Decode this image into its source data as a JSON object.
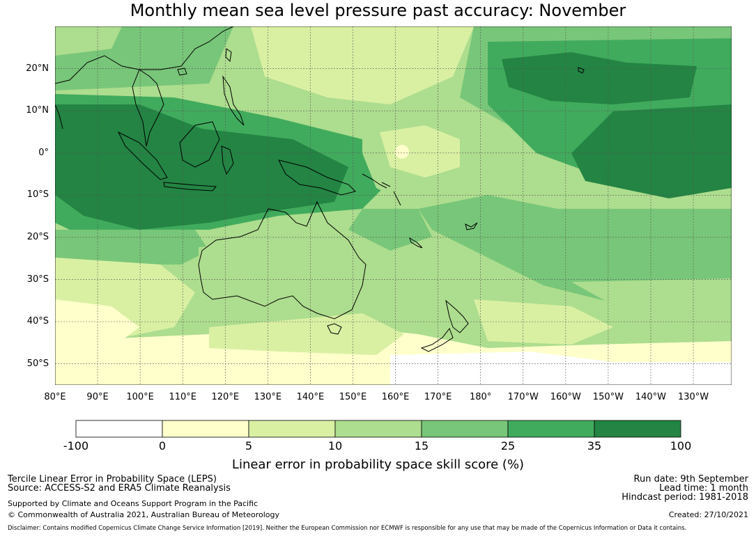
{
  "title": "Monthly mean sea level pressure past accuracy: November",
  "map": {
    "lat_labels": [
      "20°N",
      "10°N",
      "0°",
      "10°S",
      "20°S",
      "30°S",
      "40°S",
      "50°S"
    ],
    "lon_labels": [
      "80°E",
      "90°E",
      "100°E",
      "110°E",
      "120°E",
      "130°E",
      "140°E",
      "150°E",
      "160°E",
      "170°E",
      "180°",
      "170°W",
      "160°W",
      "150°W",
      "140°W",
      "130°W"
    ],
    "extent": {
      "lon_min": 80,
      "lon_max": 239,
      "lat_min": -55,
      "lat_max": 30
    },
    "gridlines": true
  },
  "colorbar": {
    "ticks": [
      "-100",
      "0",
      "5",
      "10",
      "15",
      "25",
      "35",
      "100"
    ],
    "colors": [
      "#ffffff",
      "#ffffcc",
      "#d9f0a3",
      "#addd8e",
      "#78c679",
      "#41ab5d",
      "#238443"
    ],
    "label": "Linear error in probability space skill score (%)"
  },
  "footer": {
    "left": {
      "line1": "Tercile Linear Error in Probability Space (LEPS)",
      "line2": "Source: ACCESS-S2 and ERA5 Climate Reanalysis",
      "line3": "Supported by Climate and Oceans Support Program in the Pacific",
      "line4": "© Commonwealth of Australia 2021, Australian Bureau of Meteorology"
    },
    "right": {
      "run_date": "Run date: 9th September",
      "lead_time": "Lead time: 1 month",
      "hindcast": "Hindcast period: 1981-2018",
      "created": "Created: 27/10/2021"
    },
    "disclaimer": "Disclaimer: Contains modified Copernicus Climate Change Service Information [2019]. Neither the European Commission nor ECMWF is responsible for any use that may be made of the Copernicus Information or Data it contains."
  }
}
